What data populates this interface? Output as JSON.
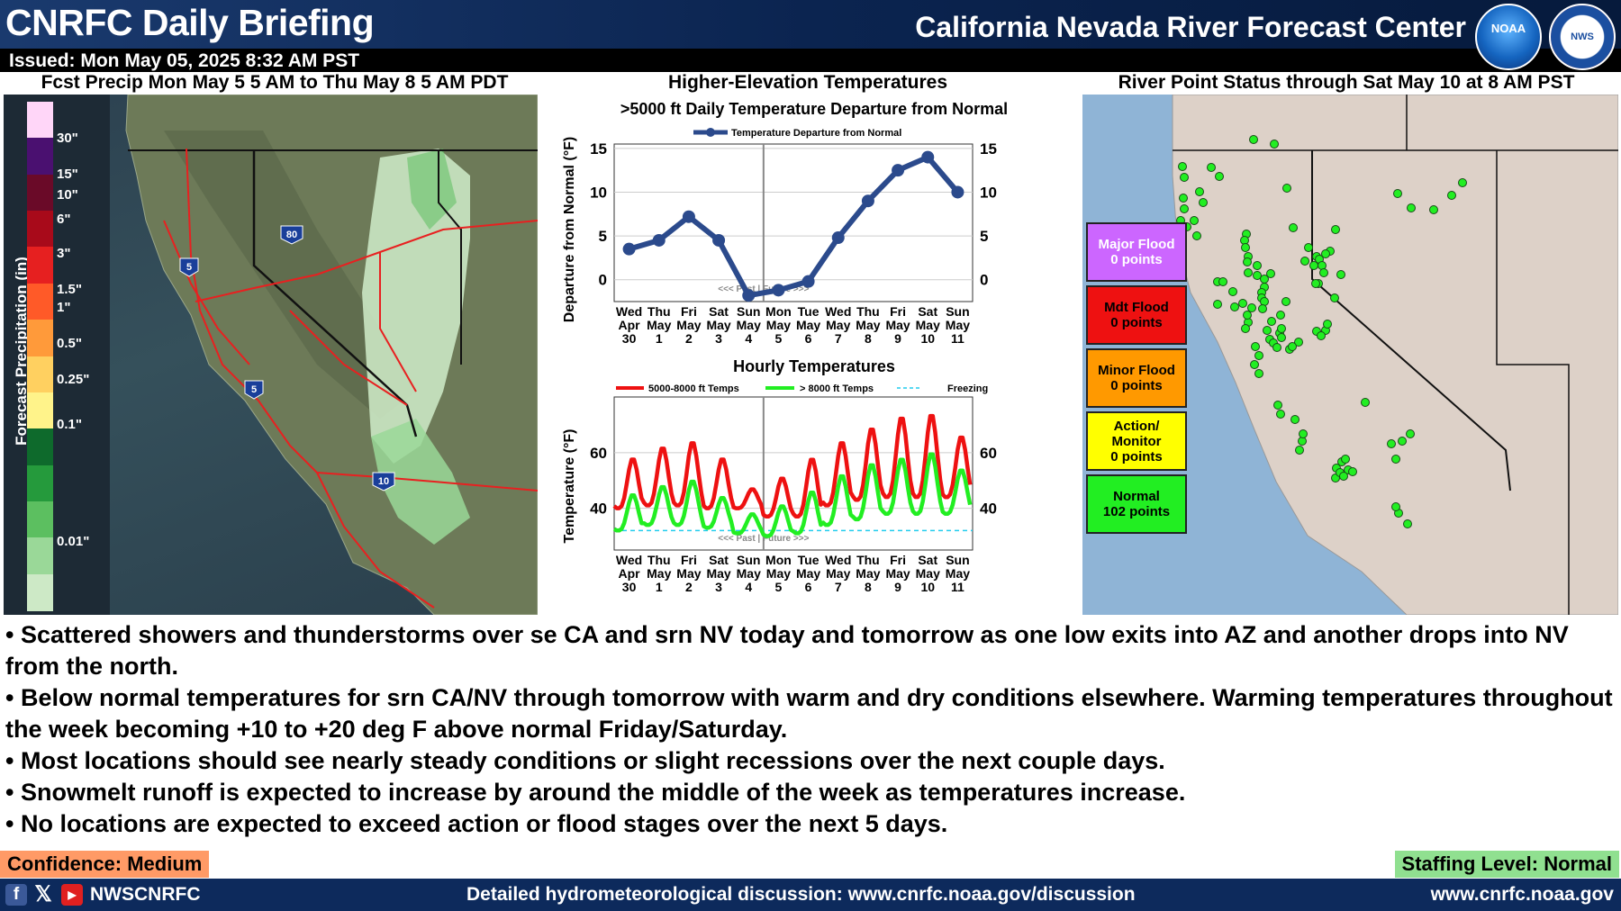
{
  "header": {
    "title": "CNRFC Daily Briefing",
    "center_name": "California Nevada River Forecast Center",
    "noaa_logo_text": "NOAA",
    "nws_logo_text": "NWS"
  },
  "issued": "Issued: Mon May 05, 2025 8:32 AM PST",
  "precip_panel": {
    "title": "Fcst Precip Mon May 5 5 AM to Thu May 8 5 AM PDT",
    "legend_label": "Forecast Precipitation (in)",
    "legend_ticks": [
      "30\"",
      "15\"",
      "10\"",
      "6\"",
      "3\"",
      "1.5\"",
      "1\"",
      "0.5\"",
      "0.25\"",
      "0.1\"",
      "0.01\""
    ],
    "legend_colors": [
      "#ffd6f8",
      "#4a1070",
      "#6a0a28",
      "#a80a1a",
      "#e62020",
      "#ff5a28",
      "#ff9a3a",
      "#ffd060",
      "#fff38a",
      "#0e6a2c",
      "#259a3c",
      "#5cbf60",
      "#9ad898",
      "#cde9c6"
    ],
    "highway_labels": [
      "5",
      "80",
      "5",
      "10"
    ]
  },
  "temps_panel": {
    "title": "Higher-Elevation Temperatures",
    "daily_title": ">5000 ft Daily Temperature Departure from Normal",
    "daily_legend": "Temperature Departure from Normal",
    "daily_ylabel": "Departure from Normal (°F)",
    "hourly_title": "Hourly Temperatures",
    "hourly_ylabel": "Temperature (°F)",
    "hourly_legend": [
      "5000-8000 ft Temps",
      "> 8000 ft Temps",
      "Freezing"
    ],
    "past_future_label": "<<< Past | Future >>>",
    "day_labels": [
      [
        "Wed",
        "Apr",
        "30"
      ],
      [
        "Thu",
        "May",
        "1"
      ],
      [
        "Fri",
        "May",
        "2"
      ],
      [
        "Sat",
        "May",
        "3"
      ],
      [
        "Sun",
        "May",
        "4"
      ],
      [
        "Mon",
        "May",
        "5"
      ],
      [
        "Tue",
        "May",
        "6"
      ],
      [
        "Wed",
        "May",
        "7"
      ],
      [
        "Thu",
        "May",
        "8"
      ],
      [
        "Fri",
        "May",
        "9"
      ],
      [
        "Sat",
        "May",
        "10"
      ],
      [
        "Sun",
        "May",
        "11"
      ]
    ]
  },
  "chart_data": [
    {
      "type": "line",
      "title": ">5000 ft Daily Temperature Departure from Normal",
      "ylabel": "Departure from Normal (°F)",
      "categories": [
        "Wed Apr 30",
        "Thu May 1",
        "Fri May 2",
        "Sat May 3",
        "Sun May 4",
        "Mon May 5",
        "Tue May 6",
        "Wed May 7",
        "Thu May 8",
        "Fri May 9",
        "Sat May 10",
        "Sun May 11"
      ],
      "series": [
        {
          "name": "Temperature Departure from Normal",
          "color": "#2b4a8c",
          "values": [
            3.5,
            4.5,
            7.2,
            4.5,
            -1.8,
            -1.2,
            -0.2,
            4.8,
            9.0,
            12.5,
            14.0,
            10.0
          ]
        }
      ],
      "ylim": [
        -2.5,
        15.5
      ],
      "yticks": [
        0,
        5,
        10,
        15
      ],
      "grid": true,
      "legend": "top"
    },
    {
      "type": "line",
      "title": "Hourly Temperatures",
      "ylabel": "Temperature (°F)",
      "x_days": [
        "Wed Apr 30",
        "Thu May 1",
        "Fri May 2",
        "Sat May 3",
        "Sun May 4",
        "Mon May 5",
        "Tue May 6",
        "Wed May 7",
        "Thu May 8",
        "Fri May 9",
        "Sat May 10",
        "Sun May 11"
      ],
      "series": [
        {
          "name": "5000-8000 ft Temps",
          "color": "#ee1111",
          "daily_min": [
            40,
            41,
            41,
            40,
            40,
            37,
            37,
            41,
            43,
            44,
            44,
            44
          ],
          "daily_max": [
            58,
            62,
            64,
            58,
            47,
            51,
            58,
            64,
            69,
            73,
            74,
            66
          ]
        },
        {
          "name": "> 8000 ft Temps",
          "color": "#22ee22",
          "daily_min": [
            32,
            34,
            34,
            33,
            31,
            30,
            31,
            34,
            36,
            38,
            38,
            38
          ],
          "daily_max": [
            45,
            48,
            50,
            44,
            38,
            41,
            46,
            52,
            56,
            58,
            60,
            54
          ]
        },
        {
          "name": "Freezing",
          "color": "#22ccee",
          "values": [
            32
          ]
        }
      ],
      "ylim": [
        25,
        80
      ],
      "yticks": [
        40,
        60
      ],
      "grid": true,
      "legend": "top"
    }
  ],
  "river_panel": {
    "title": "River Point Status through Sat May 10 at 8 AM PST",
    "status": [
      {
        "label": "Major Flood",
        "count": "0 points",
        "color": "#cc66ff",
        "text_color": "#ffffff"
      },
      {
        "label": "Mdt Flood",
        "count": "0 points",
        "color": "#ee1111",
        "text_color": "#000000"
      },
      {
        "label": "Minor Flood",
        "count": "0 points",
        "color": "#ff9900",
        "text_color": "#000000"
      },
      {
        "label": "Action/ Monitor",
        "count": "0 points",
        "color": "#ffff00",
        "text_color": "#000000"
      },
      {
        "label": "Normal",
        "count": "102 points",
        "color": "#22ee22",
        "text_color": "#000000"
      }
    ],
    "point_color": "#22ee22"
  },
  "bullets": [
    "• Scattered showers and thunderstorms over se CA and srn NV today and tomorrow as one low exits into AZ and another drops into NV from the north.",
    "• Below normal temperatures for srn CA/NV through tomorrow with warm and dry conditions elsewhere. Warming temperatures throughout the week becoming +10 to +20 deg F above normal Friday/Saturday.",
    "• Most locations should see nearly steady conditions or slight recessions over the next couple days.",
    "• Snowmelt runoff is expected to increase by around the middle of the week as temperatures increase.",
    "• No locations are expected to exceed action or flood stages over the next 5 days."
  ],
  "confidence": "Confidence: Medium",
  "staffing": "Staffing Level: Normal",
  "footer": {
    "social_handle": "NWSCNRFC",
    "discussion": "Detailed hydrometeorological discussion: www.cnrfc.noaa.gov/discussion",
    "website": "www.cnrfc.noaa.gov",
    "facebook_glyph": "f",
    "x_glyph": "𝕏",
    "youtube_glyph": "▶"
  }
}
